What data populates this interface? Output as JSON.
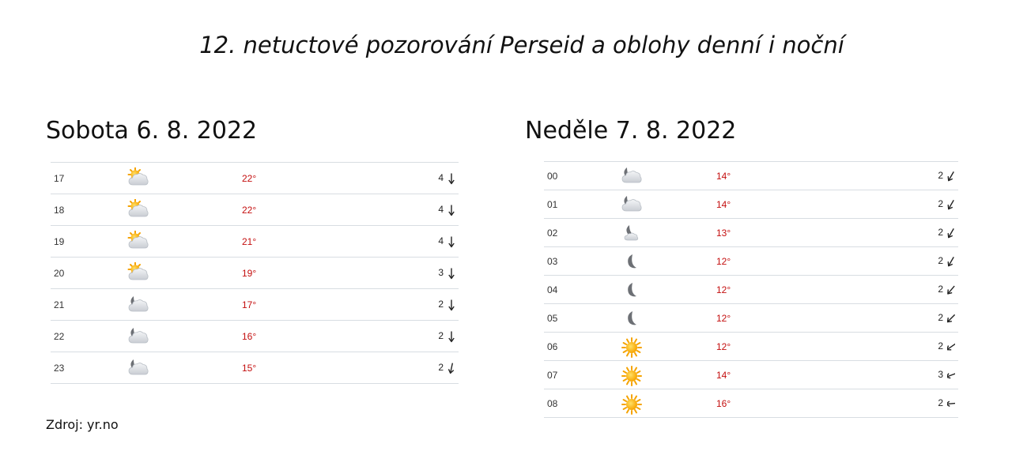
{
  "title": "12. netuctové pozorování Perseid a oblohy denní i noční",
  "source": "Zdroj: yr.no",
  "colors": {
    "temp": "#c40f0f",
    "divider": "#d8dde2"
  },
  "days": [
    {
      "heading": "Sobota 6. 8. 2022",
      "rows": [
        {
          "hour": "17",
          "icon": "partly-cloudy-day-icon",
          "temp": "22°",
          "wind": "4",
          "arrow": "arrow-down-icon",
          "rot": 0
        },
        {
          "hour": "18",
          "icon": "partly-cloudy-day-icon",
          "temp": "22°",
          "wind": "4",
          "arrow": "arrow-down-icon",
          "rot": 0
        },
        {
          "hour": "19",
          "icon": "partly-cloudy-day-icon",
          "temp": "21°",
          "wind": "4",
          "arrow": "arrow-down-icon",
          "rot": 0
        },
        {
          "hour": "20",
          "icon": "partly-cloudy-day-icon",
          "temp": "19°",
          "wind": "3",
          "arrow": "arrow-down-icon",
          "rot": 0
        },
        {
          "hour": "21",
          "icon": "partly-cloudy-night-icon",
          "temp": "17°",
          "wind": "2",
          "arrow": "arrow-down-icon",
          "rot": 0
        },
        {
          "hour": "22",
          "icon": "partly-cloudy-night-icon",
          "temp": "16°",
          "wind": "2",
          "arrow": "arrow-down-icon",
          "rot": 0
        },
        {
          "hour": "23",
          "icon": "partly-cloudy-night-icon",
          "temp": "15°",
          "wind": "2",
          "arrow": "arrow-down-left-icon",
          "rot": 12
        }
      ]
    },
    {
      "heading": "Neděle 7. 8. 2022",
      "rows": [
        {
          "hour": "00",
          "icon": "partly-cloudy-night-icon",
          "temp": "14°",
          "wind": "2",
          "arrow": "arrow-down-left-icon",
          "rot": 30
        },
        {
          "hour": "01",
          "icon": "partly-cloudy-night-icon",
          "temp": "14°",
          "wind": "2",
          "arrow": "arrow-down-left-icon",
          "rot": 30
        },
        {
          "hour": "02",
          "icon": "fair-night-icon",
          "temp": "13°",
          "wind": "2",
          "arrow": "arrow-down-left-icon",
          "rot": 30
        },
        {
          "hour": "03",
          "icon": "clear-night-icon",
          "temp": "12°",
          "wind": "2",
          "arrow": "arrow-down-left-icon",
          "rot": 30
        },
        {
          "hour": "04",
          "icon": "clear-night-icon",
          "temp": "12°",
          "wind": "2",
          "arrow": "arrow-down-left-icon",
          "rot": 40
        },
        {
          "hour": "05",
          "icon": "clear-night-icon",
          "temp": "12°",
          "wind": "2",
          "arrow": "arrow-down-left-icon",
          "rot": 45
        },
        {
          "hour": "06",
          "icon": "clear-sun-icon",
          "temp": "12°",
          "wind": "2",
          "arrow": "arrow-down-left-icon",
          "rot": 55
        },
        {
          "hour": "07",
          "icon": "clear-sun-icon",
          "temp": "14°",
          "wind": "3",
          "arrow": "arrow-left-icon",
          "rot": 70
        },
        {
          "hour": "08",
          "icon": "clear-sun-icon",
          "temp": "16°",
          "wind": "2",
          "arrow": "arrow-left-icon",
          "rot": 85
        }
      ]
    }
  ]
}
